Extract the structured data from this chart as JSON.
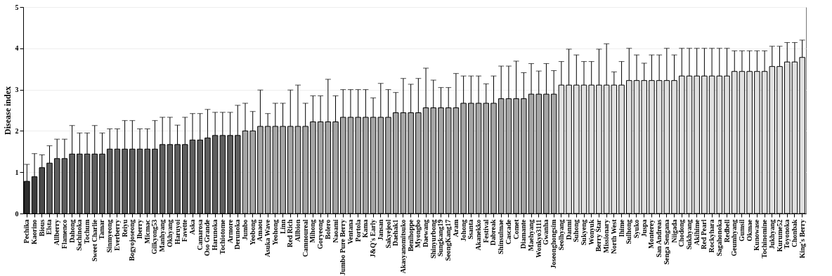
{
  "chart_data": {
    "type": "bar",
    "ylabel": "Disease index",
    "ylim": [
      0,
      5
    ],
    "yticks": [
      0,
      1,
      2,
      3,
      4,
      5
    ],
    "grid": "y",
    "categories": [
      "Pechika",
      "Kaorino",
      "Bious",
      "Elsta",
      "Allberry",
      "Flamenco",
      "Dahong",
      "Sachinoka",
      "Tochum",
      "Sweet Charlie",
      "Tamar",
      "Sinmyeong",
      "Everberry",
      "Reiyu",
      "Bogyojoseong",
      "Iberry",
      "Micmac",
      "Gilkyong53",
      "Manhyang",
      "Okhyang",
      "Haruyoi",
      "Favette",
      "Aska",
      "Camarosa",
      "Oso Grande",
      "Harunoka",
      "Tochiotome",
      "Armore",
      "Derunoka",
      "Jumbo",
      "Yeobong",
      "Amaou",
      "Asuka Wave",
      "Yeohong",
      "Linn",
      "Red Rich",
      "Allbion",
      "Camnoureal",
      "Mihong",
      "Goryeong",
      "Bolero",
      "Naoami",
      "Jumbo Pure Berry",
      "Ventana",
      "Portola",
      "Kama",
      "J&Q's Early",
      "Jansan",
      "Sakyejeol",
      "Daehak1",
      "Akasyanomitsuko",
      "Benihoppe",
      "Myongbo",
      "Daewang",
      "Shinyurbong",
      "Sungkang19",
      "SeongKang17",
      "Aram",
      "Johong",
      "Ssanta",
      "Akanekko",
      "Festival",
      "Dabreak",
      "Shinsulmae",
      "Cascade",
      "Comet",
      "Diamante",
      "Maehyang",
      "Wonkyo3111",
      "Gwanha",
      "Joseonghongsim",
      "Seolhyang",
      "Danmi",
      "Suhong",
      "Sukyeng",
      "Wonyuk",
      "Berry Star",
      "Missionary",
      "North West",
      "Ihime",
      "Sulhong",
      "Syuko",
      "Juspa",
      "Monterey",
      "San Andreas",
      "Senga Sengana",
      "Niigada",
      "Chodong",
      "Sukhyang",
      "Akihime",
      "Red Pearl",
      "Rockyhara",
      "Sagahonoka",
      "Redbell",
      "Geumhyang",
      "Gumsil",
      "Okmae",
      "Kunowase",
      "Tochinomine",
      "Jukhyang",
      "Kurume52",
      "Toyonoka",
      "Chonbak",
      "King's Berry"
    ],
    "values": [
      0.78,
      0.89,
      1.11,
      1.22,
      1.33,
      1.33,
      1.44,
      1.44,
      1.44,
      1.44,
      1.44,
      1.56,
      1.56,
      1.56,
      1.56,
      1.56,
      1.56,
      1.56,
      1.67,
      1.67,
      1.67,
      1.67,
      1.78,
      1.78,
      1.83,
      1.89,
      1.89,
      1.89,
      1.89,
      2.0,
      2.0,
      2.11,
      2.11,
      2.11,
      2.11,
      2.11,
      2.11,
      2.11,
      2.22,
      2.22,
      2.22,
      2.22,
      2.33,
      2.33,
      2.33,
      2.33,
      2.33,
      2.33,
      2.33,
      2.44,
      2.44,
      2.44,
      2.44,
      2.56,
      2.56,
      2.56,
      2.56,
      2.56,
      2.67,
      2.67,
      2.67,
      2.67,
      2.67,
      2.78,
      2.78,
      2.78,
      2.78,
      2.89,
      2.89,
      2.89,
      2.89,
      3.11,
      3.11,
      3.11,
      3.11,
      3.11,
      3.11,
      3.11,
      3.11,
      3.11,
      3.22,
      3.22,
      3.22,
      3.22,
      3.22,
      3.22,
      3.22,
      3.33,
      3.33,
      3.33,
      3.33,
      3.33,
      3.33,
      3.33,
      3.44,
      3.44,
      3.44,
      3.44,
      3.44,
      3.56,
      3.56,
      3.67,
      3.67,
      3.78
    ],
    "errors": [
      [
        0.78,
        1.19
      ],
      [
        0.89,
        1.45
      ],
      [
        1.11,
        1.42
      ],
      [
        1.22,
        1.64
      ],
      [
        1.33,
        1.8
      ],
      [
        1.33,
        1.8
      ],
      [
        1.44,
        2.13
      ],
      [
        1.44,
        1.95
      ],
      [
        1.44,
        1.95
      ],
      [
        1.44,
        2.13
      ],
      [
        1.44,
        1.95
      ],
      [
        1.56,
        2.05
      ],
      [
        1.56,
        2.05
      ],
      [
        1.56,
        2.25
      ],
      [
        1.56,
        2.25
      ],
      [
        1.56,
        2.05
      ],
      [
        1.56,
        2.05
      ],
      [
        1.56,
        2.25
      ],
      [
        1.67,
        2.33
      ],
      [
        1.67,
        2.33
      ],
      [
        1.67,
        2.14
      ],
      [
        1.67,
        2.33
      ],
      [
        1.78,
        2.42
      ],
      [
        1.78,
        2.42
      ],
      [
        1.83,
        2.52
      ],
      [
        1.89,
        2.45
      ],
      [
        1.89,
        2.45
      ],
      [
        1.89,
        2.45
      ],
      [
        1.89,
        2.62
      ],
      [
        2.0,
        2.67
      ],
      [
        2.0,
        2.47
      ],
      [
        2.11,
        2.99
      ],
      [
        2.11,
        2.42
      ],
      [
        2.11,
        2.67
      ],
      [
        2.11,
        2.67
      ],
      [
        2.11,
        2.99
      ],
      [
        2.11,
        3.11
      ],
      [
        2.11,
        2.67
      ],
      [
        2.22,
        2.85
      ],
      [
        2.22,
        2.85
      ],
      [
        2.22,
        3.25
      ],
      [
        2.22,
        2.85
      ],
      [
        2.33,
        3.0
      ],
      [
        2.33,
        3.0
      ],
      [
        2.33,
        3.0
      ],
      [
        2.33,
        3.0
      ],
      [
        2.33,
        2.8
      ],
      [
        2.33,
        3.15
      ],
      [
        2.33,
        3.0
      ],
      [
        2.44,
        2.93
      ],
      [
        2.44,
        3.27
      ],
      [
        2.44,
        3.13
      ],
      [
        2.44,
        3.27
      ],
      [
        2.56,
        3.52
      ],
      [
        2.56,
        3.23
      ],
      [
        2.56,
        3.05
      ],
      [
        2.56,
        3.05
      ],
      [
        2.56,
        3.39
      ],
      [
        2.67,
        3.33
      ],
      [
        2.67,
        3.33
      ],
      [
        2.67,
        3.33
      ],
      [
        2.67,
        3.14
      ],
      [
        2.67,
        3.33
      ],
      [
        2.78,
        3.57
      ],
      [
        2.78,
        3.57
      ],
      [
        2.78,
        3.69
      ],
      [
        2.78,
        3.41
      ],
      [
        2.89,
        3.63
      ],
      [
        2.89,
        3.45
      ],
      [
        2.89,
        3.63
      ],
      [
        2.89,
        3.46
      ],
      [
        3.11,
        3.68
      ],
      [
        3.11,
        3.98
      ],
      [
        3.11,
        3.84
      ],
      [
        3.11,
        3.68
      ],
      [
        3.11,
        3.68
      ],
      [
        3.11,
        3.98
      ],
      [
        3.11,
        4.11
      ],
      [
        3.11,
        3.43
      ],
      [
        3.11,
        3.68
      ],
      [
        3.22,
        4.0
      ],
      [
        3.22,
        3.84
      ],
      [
        3.22,
        3.64
      ],
      [
        3.22,
        3.84
      ],
      [
        3.22,
        3.84
      ],
      [
        3.22,
        4.0
      ],
      [
        3.22,
        3.84
      ],
      [
        3.33,
        4.0
      ],
      [
        3.33,
        4.0
      ],
      [
        3.33,
        4.0
      ],
      [
        3.33,
        4.0
      ],
      [
        3.33,
        4.0
      ],
      [
        3.33,
        4.0
      ],
      [
        3.33,
        4.0
      ],
      [
        3.44,
        3.94
      ],
      [
        3.44,
        3.94
      ],
      [
        3.44,
        3.94
      ],
      [
        3.44,
        3.94
      ],
      [
        3.44,
        3.94
      ],
      [
        3.56,
        4.05
      ],
      [
        3.56,
        4.05
      ],
      [
        3.67,
        4.14
      ],
      [
        3.67,
        4.14
      ],
      [
        3.78,
        4.2
      ]
    ],
    "colors": [
      "#2e2e2e",
      "#3c3c3c",
      "#4a4a4a",
      "#5e5e5e",
      "#5e5e5e",
      "#5e5e5e",
      "#5e5e5e",
      "#5e5e5e",
      "#5e5e5e",
      "#5e5e5e",
      "#5e5e5e",
      "#5e5e5e",
      "#5e5e5e",
      "#5e5e5e",
      "#5e5e5e",
      "#5e5e5e",
      "#5e5e5e",
      "#5e5e5e",
      "#5e5e5e",
      "#5e5e5e",
      "#5e5e5e",
      "#5e5e5e",
      "#5e5e5e",
      "#5e5e5e",
      "#5e5e5e",
      "#5e5e5e",
      "#5e5e5e",
      "#5e5e5e",
      "#5e5e5e",
      "#a5a5a5",
      "#a5a5a5",
      "#a5a5a5",
      "#a5a5a5",
      "#a5a5a5",
      "#a5a5a5",
      "#a5a5a5",
      "#a5a5a5",
      "#a5a5a5",
      "#a5a5a5",
      "#a5a5a5",
      "#a5a5a5",
      "#a5a5a5",
      "#a5a5a5",
      "#a5a5a5",
      "#a5a5a5",
      "#a5a5a5",
      "#a5a5a5",
      "#a5a5a5",
      "#a5a5a5",
      "#a5a5a5",
      "#a5a5a5",
      "#a5a5a5",
      "#a5a5a5",
      "#a5a5a5",
      "#a5a5a5",
      "#a5a5a5",
      "#a5a5a5",
      "#a5a5a5",
      "#a5a5a5",
      "#a5a5a5",
      "#a5a5a5",
      "#a5a5a5",
      "#a5a5a5",
      "#a5a5a5",
      "#a5a5a5",
      "#a5a5a5",
      "#a5a5a5",
      "#a5a5a5",
      "#a5a5a5",
      "#a5a5a5",
      "#a5a5a5",
      "#e0e0e0",
      "#e0e0e0",
      "#e0e0e0",
      "#e0e0e0",
      "#e0e0e0",
      "#e0e0e0",
      "#e0e0e0",
      "#e0e0e0",
      "#e0e0e0",
      "#e0e0e0",
      "#e0e0e0",
      "#e0e0e0",
      "#e0e0e0",
      "#e0e0e0",
      "#e0e0e0",
      "#e0e0e0",
      "#e0e0e0",
      "#e0e0e0",
      "#e0e0e0",
      "#e0e0e0",
      "#e0e0e0",
      "#e0e0e0",
      "#e0e0e0",
      "#e0e0e0",
      "#e0e0e0",
      "#e0e0e0",
      "#e0e0e0",
      "#e0e0e0",
      "#e0e0e0",
      "#e0e0e0",
      "#e0e0e0",
      "#e0e0e0",
      "#e0e0e0"
    ]
  }
}
